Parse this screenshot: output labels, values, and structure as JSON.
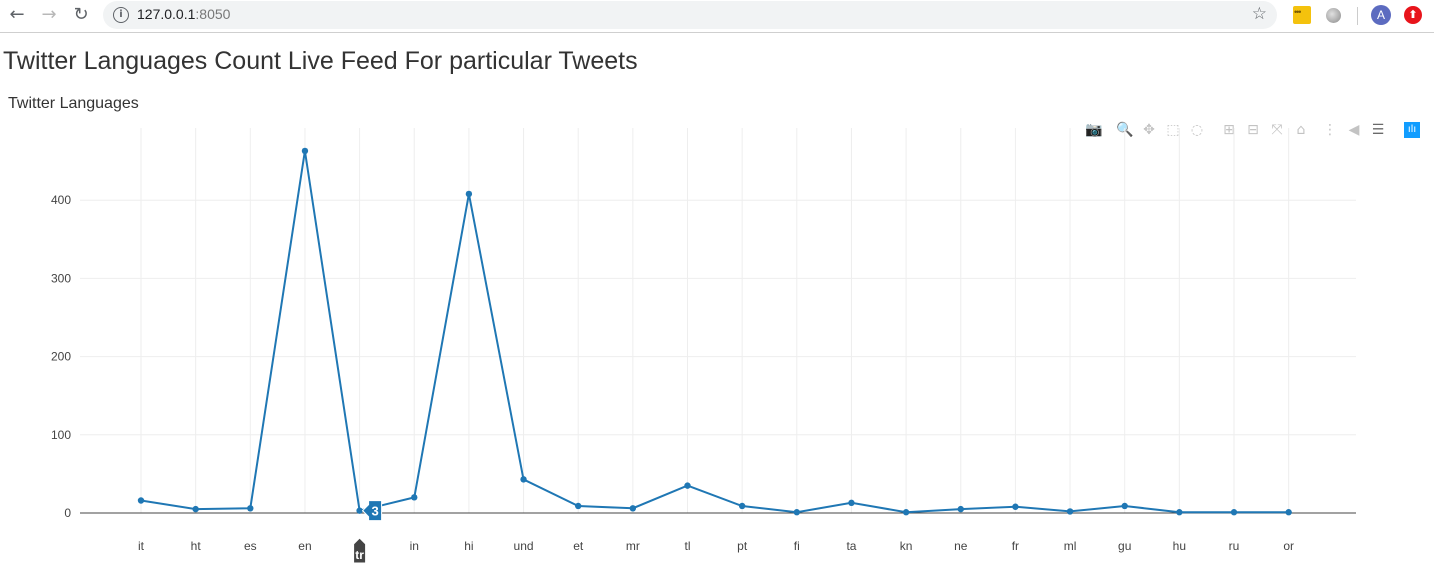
{
  "browser": {
    "back_icon": "back-arrow-icon",
    "forward_icon": "forward-arrow-icon",
    "reload_icon": "reload-icon",
    "url_host": "127.0.0.1",
    "url_port": ":8050",
    "avatar_letter": "A"
  },
  "page": {
    "title": "Twitter Languages Count Live Feed For particular Tweets"
  },
  "chart_data": {
    "type": "line",
    "title": "Twitter Languages",
    "xlabel": "",
    "ylabel": "",
    "categories": [
      "it",
      "ht",
      "es",
      "en",
      "tr",
      "in",
      "hi",
      "und",
      "et",
      "mr",
      "tl",
      "pt",
      "fi",
      "ta",
      "kn",
      "ne",
      "fr",
      "ml",
      "gu",
      "hu",
      "ru",
      "or"
    ],
    "values": [
      16,
      5,
      6,
      463,
      3,
      20,
      408,
      43,
      9,
      6,
      35,
      9,
      1,
      13,
      1,
      5,
      8,
      2,
      9,
      1,
      1,
      1
    ],
    "ylim": [
      0,
      480
    ],
    "yticks": [
      0,
      100,
      200,
      300,
      400
    ],
    "grid": true,
    "line_color": "#1f77b4",
    "hover": {
      "category": "tr",
      "value": "3"
    }
  },
  "modebar": {
    "icons": [
      "camera-icon",
      "zoom-icon",
      "pan-icon",
      "box-select-icon",
      "lasso-icon",
      "zoom-in-icon",
      "zoom-out-icon",
      "autoscale-icon",
      "reset-axes-icon",
      "spike-lines-icon",
      "hover-closest-icon",
      "hover-compare-icon",
      "plotly-logo-icon"
    ]
  }
}
